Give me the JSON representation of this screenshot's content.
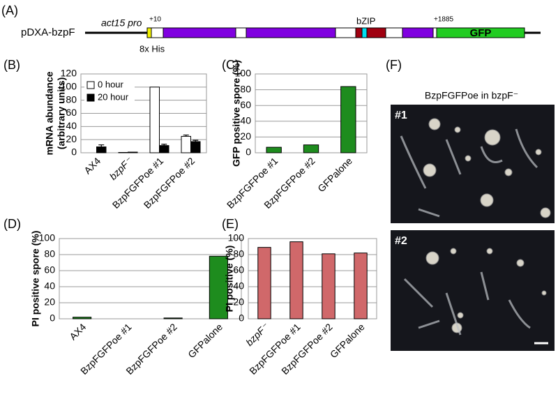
{
  "construct": {
    "panel": "(A)",
    "name": "pDXA-bzpF",
    "promoter": "act15 pro",
    "start": "+10",
    "end": "+1885",
    "domain": "bZIP",
    "tag": "GFP",
    "his": "8x His"
  },
  "figure_f": {
    "panel": "(F)",
    "title": "BzpFGFPoe in bzpF⁻",
    "image1": "#1",
    "image2": "#2"
  },
  "chart_data": [
    {
      "type": "bar",
      "panel": "(B)",
      "ylabel": [
        "mRNA abundance",
        "(arbitrary units)"
      ],
      "categories": [
        "AX4",
        "bzpF⁻",
        "BzpFGFPoe #1",
        "BzpFGFPoe #2"
      ],
      "series": [
        {
          "name": "0 hour",
          "color": "#ffffff",
          "values": [
            0,
            0.5,
            100,
            25
          ],
          "errors": [
            0,
            0,
            0,
            2
          ]
        },
        {
          "name": "20 hour",
          "color": "#000000",
          "values": [
            9,
            1,
            11,
            17
          ],
          "errors": [
            3,
            0,
            2,
            2
          ]
        }
      ],
      "ylim": [
        0,
        120
      ],
      "yticks": [
        0,
        20,
        40,
        60,
        80,
        100,
        120
      ],
      "grid": true,
      "legend": "top-left"
    },
    {
      "type": "bar",
      "panel": "(C)",
      "ylabel": "GFP positive  spore (%)",
      "categories": [
        "BzpFGFPoe #1",
        "BzpFGFPoe #2",
        "GFPalone"
      ],
      "values": [
        7,
        10,
        84
      ],
      "color": "#1e8c1e",
      "ylim": [
        0,
        100
      ],
      "yticks": [
        0,
        20,
        40,
        60,
        80,
        100
      ],
      "grid": true
    },
    {
      "type": "bar",
      "panel": "(D)",
      "ylabel": "PI positive spore (%)",
      "categories": [
        "AX4",
        "BzpFGFPoe #1",
        "BzpFGFPoe #2",
        "GFPalone"
      ],
      "values": [
        2,
        0,
        1,
        78
      ],
      "color": "#1e8c1e",
      "ylim": [
        0,
        100
      ],
      "yticks": [
        0,
        20,
        40,
        60,
        80,
        100
      ],
      "grid": true
    },
    {
      "type": "bar",
      "panel": "(E)",
      "ylabel": "PI positive (%)",
      "categories": [
        "bzpF⁻",
        "BzpFGFPoe #1",
        "BzpFGFPoe #2",
        "GFPalone"
      ],
      "values": [
        89,
        96,
        81,
        82
      ],
      "color": "#d0686a",
      "ylim": [
        0,
        100
      ],
      "yticks": [
        0,
        20,
        40,
        60,
        80,
        100
      ],
      "grid": true
    }
  ]
}
